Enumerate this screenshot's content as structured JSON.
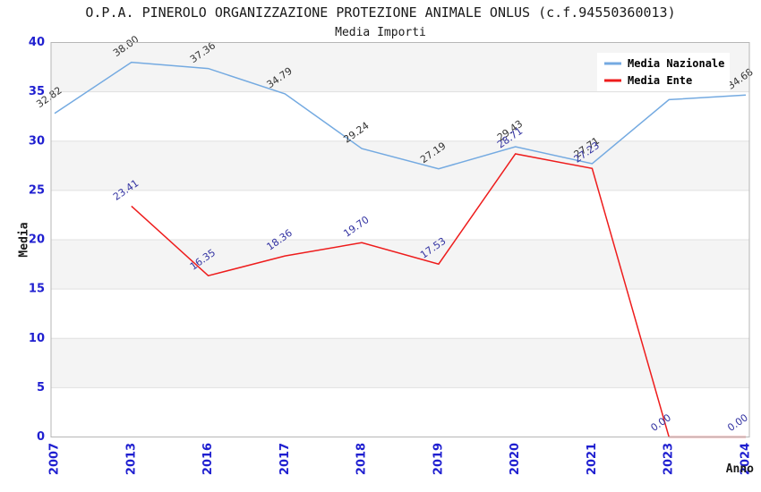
{
  "chart_data": {
    "type": "line",
    "title": "O.P.A. PINEROLO ORGANIZZAZIONE PROTEZIONE ANIMALE ONLUS (c.f.94550360013)",
    "subtitle": "Media Importi",
    "xlabel": "Anno",
    "ylabel": "Media",
    "ylim": [
      0,
      40
    ],
    "yticks": [
      0,
      5,
      10,
      15,
      20,
      25,
      30,
      35,
      40
    ],
    "categories": [
      "2007",
      "2013",
      "2016",
      "2017",
      "2018",
      "2019",
      "2020",
      "2021",
      "2023",
      "2024"
    ],
    "series": [
      {
        "name": "Media Nazionale",
        "color": "#74aae1",
        "label_color": "#333333",
        "values": [
          32.82,
          38.0,
          37.36,
          34.79,
          29.24,
          27.19,
          29.43,
          27.71,
          34.2,
          34.68
        ],
        "labels": [
          "32.82",
          "38.00",
          "37.36",
          "34.79",
          "29.24",
          "27.19",
          "29.43",
          "27.71",
          "",
          "34.68"
        ]
      },
      {
        "name": "Media Ente",
        "color": "#ee1c1c",
        "label_color": "#3333a2",
        "values": [
          null,
          23.41,
          16.35,
          18.36,
          19.7,
          17.53,
          28.71,
          27.23,
          0,
          0
        ],
        "labels": [
          "",
          "23.41",
          "16.35",
          "18.36",
          "19.70",
          "17.53",
          "28.71",
          "27.23",
          "0.00",
          "0.00"
        ]
      }
    ],
    "legend": {
      "position": "top-right",
      "entries": [
        "Media Nazionale",
        "Media Ente"
      ]
    },
    "style": {
      "band_color": "#f4f4f4",
      "grid_color": "#e0e0e0",
      "border_color": "#b6b6b6",
      "tick_color": "#1f1fd0",
      "background": "#ffffff"
    }
  }
}
